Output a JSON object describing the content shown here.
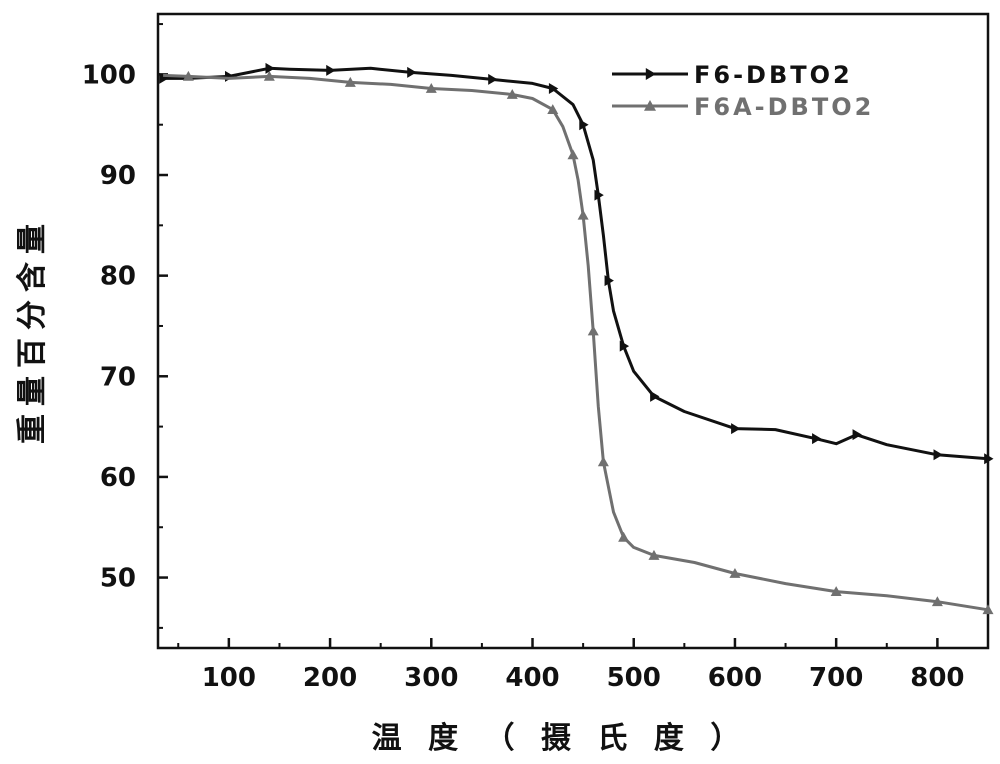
{
  "chart_data": {
    "type": "line",
    "title": "",
    "xlabel": "温 度 （ 摄 氏 度 ）",
    "ylabel": "重量百分含量",
    "xlim": [
      30,
      850
    ],
    "ylim": [
      43,
      106
    ],
    "xticks": [
      100,
      200,
      300,
      400,
      500,
      600,
      700,
      800
    ],
    "yticks": [
      50,
      60,
      70,
      80,
      90,
      100
    ],
    "grid": false,
    "legend_position": "top-right",
    "series": [
      {
        "name": "F6-DBTO2",
        "color": "#111111",
        "marker": "right-triangle",
        "x": [
          35,
          60,
          100,
          120,
          140,
          160,
          200,
          240,
          280,
          320,
          360,
          400,
          420,
          440,
          450,
          460,
          465,
          470,
          475,
          480,
          490,
          500,
          520,
          550,
          600,
          640,
          680,
          700,
          720,
          750,
          800,
          850
        ],
        "y": [
          99.6,
          99.6,
          99.8,
          100.2,
          100.6,
          100.5,
          100.4,
          100.6,
          100.2,
          99.9,
          99.5,
          99.1,
          98.6,
          97.0,
          95.0,
          91.5,
          88.0,
          84.0,
          79.5,
          76.5,
          73.0,
          70.5,
          68.0,
          66.5,
          64.8,
          64.7,
          63.8,
          63.3,
          64.2,
          63.2,
          62.2,
          61.8
        ]
      },
      {
        "name": "F6A-DBTO2",
        "color": "#707070",
        "marker": "triangle",
        "x": [
          35,
          60,
          100,
          140,
          180,
          220,
          260,
          300,
          340,
          380,
          400,
          420,
          430,
          440,
          445,
          450,
          455,
          460,
          465,
          470,
          480,
          490,
          500,
          520,
          560,
          600,
          650,
          700,
          750,
          800,
          850
        ],
        "y": [
          99.9,
          99.8,
          99.6,
          99.8,
          99.6,
          99.2,
          99.0,
          98.6,
          98.4,
          98.0,
          97.6,
          96.5,
          94.8,
          92.0,
          89.5,
          86.0,
          81.0,
          74.5,
          67.0,
          61.5,
          56.5,
          54.0,
          53.0,
          52.2,
          51.5,
          50.4,
          49.4,
          48.6,
          48.2,
          47.6,
          46.8
        ]
      }
    ]
  }
}
